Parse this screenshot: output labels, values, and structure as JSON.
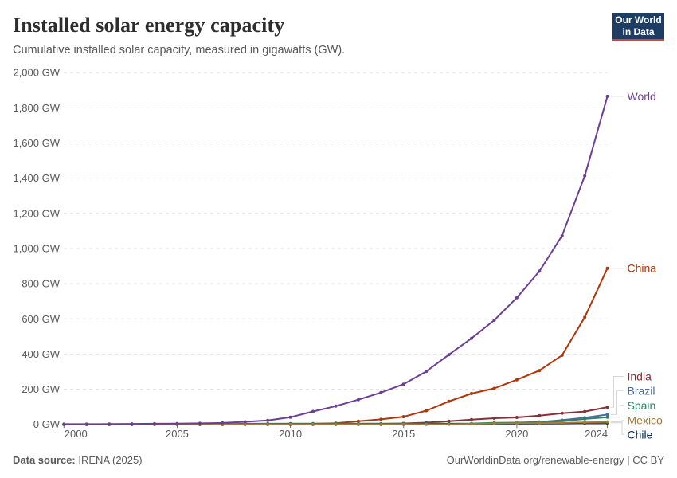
{
  "header": {
    "title": "Installed solar energy capacity",
    "subtitle": "Cumulative installed solar capacity, measured in gigawatts (GW).",
    "logo": {
      "line1": "Our World",
      "line2": "in Data",
      "background_color": "#1d3d63",
      "accent_color": "#e63e36"
    }
  },
  "footer": {
    "source_label": "Data source:",
    "source_value": "IRENA (2025)",
    "right_text": "OurWorldinData.org/renewable-energy | CC BY"
  },
  "chart_data": {
    "type": "line",
    "title": "Installed solar energy capacity",
    "subtitle": "Cumulative installed solar capacity, measured in gigawatts (GW).",
    "unit": "GW",
    "x": [
      2000,
      2001,
      2002,
      2003,
      2004,
      2005,
      2006,
      2007,
      2008,
      2009,
      2010,
      2011,
      2012,
      2013,
      2014,
      2015,
      2016,
      2017,
      2018,
      2019,
      2020,
      2021,
      2022,
      2023,
      2024
    ],
    "xticks": [
      2000,
      2005,
      2010,
      2015,
      2020,
      2024
    ],
    "ylim": [
      0,
      2000
    ],
    "ytick_step": 200,
    "ytick_suffix": " GW",
    "grid": "horizontal-dashed",
    "legend_position": "right-line-labels",
    "series": [
      {
        "name": "World",
        "color": "#6D3E91",
        "values": [
          1.2,
          1.5,
          1.9,
          2.5,
          3.4,
          4.6,
          5.9,
          8.1,
          14.7,
          22.6,
          40.1,
          73.4,
          103.7,
          140.5,
          180.8,
          228.9,
          301.2,
          396.3,
          489.3,
          592.2,
          720.4,
          871.3,
          1073.0,
          1412.9,
          1865.5
        ]
      },
      {
        "name": "China",
        "color": "#B13507",
        "values": [
          0.02,
          0.02,
          0.05,
          0.05,
          0.06,
          0.07,
          0.08,
          0.1,
          0.14,
          0.3,
          1.0,
          3.1,
          6.7,
          17.8,
          28.4,
          43.5,
          77.8,
          130.8,
          175.3,
          204.7,
          253.8,
          306.4,
          393.0,
          609.5,
          887.9
        ]
      },
      {
        "name": "India",
        "color": "#883039",
        "values": [
          0.01,
          0.01,
          0.01,
          0.02,
          0.02,
          0.03,
          0.03,
          0.04,
          0.06,
          0.08,
          0.1,
          0.6,
          1.2,
          1.8,
          2.8,
          5.6,
          9.9,
          18.1,
          27.3,
          35.1,
          39.2,
          49.3,
          63.1,
          73.1,
          97.9
        ]
      },
      {
        "name": "Brazil",
        "color": "#4C6A9C",
        "values": [
          0,
          0,
          0,
          0,
          0,
          0,
          0,
          0,
          0,
          0,
          0,
          0,
          0.01,
          0.03,
          0.02,
          0.04,
          0.15,
          1.1,
          2.5,
          4.6,
          7.9,
          13.7,
          24.1,
          37.4,
          55.9
        ]
      },
      {
        "name": "Spain",
        "color": "#2C8465",
        "values": [
          0.01,
          0.02,
          0.02,
          0.03,
          0.04,
          0.06,
          0.15,
          0.72,
          3.46,
          3.52,
          3.92,
          4.33,
          4.61,
          4.71,
          4.7,
          4.71,
          4.72,
          4.72,
          4.77,
          8.77,
          10.1,
          13.7,
          18.3,
          30.9,
          40.1
        ]
      },
      {
        "name": "Mexico",
        "color": "#A87A33",
        "values": [
          0.01,
          0.01,
          0.02,
          0.02,
          0.02,
          0.02,
          0.03,
          0.03,
          0.03,
          0.03,
          0.03,
          0.04,
          0.06,
          0.11,
          0.17,
          0.28,
          0.39,
          0.67,
          3.08,
          4.89,
          6.07,
          6.98,
          8.13,
          10.9,
          14.0
        ]
      },
      {
        "name": "Chile",
        "color": "#00295B",
        "values": [
          0,
          0,
          0,
          0,
          0,
          0,
          0,
          0,
          0,
          0,
          0,
          0,
          0,
          0.01,
          0.22,
          0.85,
          1.61,
          2.07,
          2.58,
          3.1,
          3.74,
          5.25,
          6.85,
          8.1,
          9.1
        ]
      }
    ]
  }
}
